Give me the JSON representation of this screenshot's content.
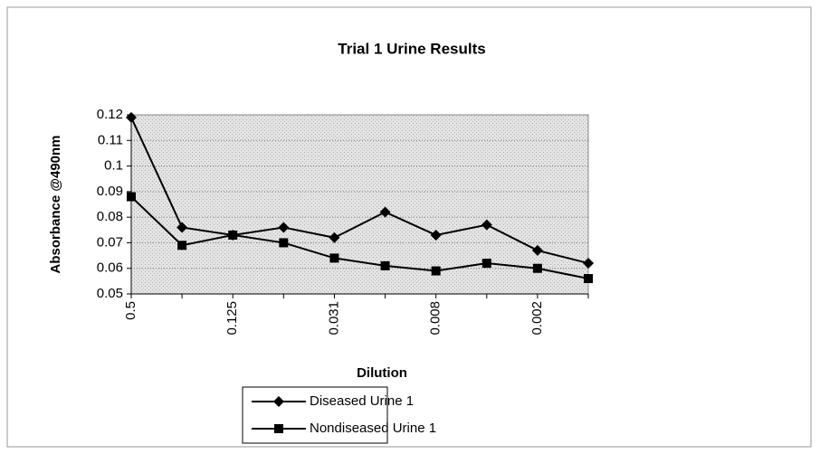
{
  "chart_data": {
    "type": "line",
    "title": "Trial 1 Urine Results",
    "x_label": "Dilution",
    "y_label": "Absorbance @490nm",
    "categories": [
      "0.5",
      null,
      "0.125",
      null,
      "0.031",
      null,
      "0.008",
      null,
      "0.002",
      null
    ],
    "series": [
      {
        "name": "Diseased Urine 1",
        "color": "#000000",
        "marker": "diamond",
        "values": [
          0.119,
          0.076,
          0.073,
          0.076,
          0.072,
          0.082,
          0.073,
          0.077,
          0.067,
          0.062
        ]
      },
      {
        "name": "Nondiseased Urine 1",
        "color": "#000000",
        "marker": "square",
        "values": [
          0.088,
          0.069,
          0.073,
          0.07,
          0.064,
          0.061,
          0.059,
          0.062,
          0.06,
          0.056
        ]
      }
    ],
    "ylim": [
      0.05,
      0.12
    ],
    "yticks": [
      0.05,
      0.06,
      0.07,
      0.08,
      0.09,
      0.1,
      0.11,
      0.12
    ],
    "grid": true
  }
}
